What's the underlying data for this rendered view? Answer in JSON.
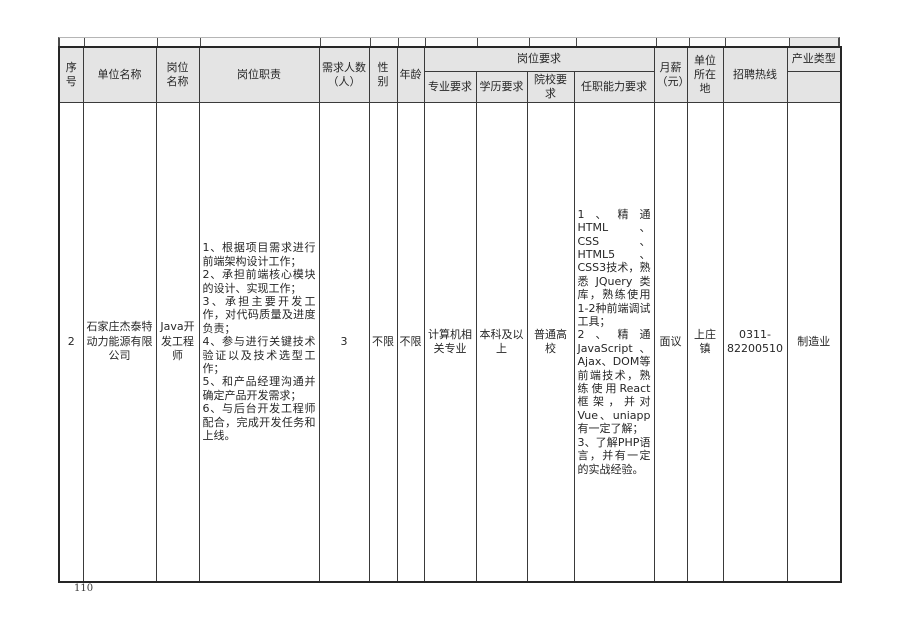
{
  "colors": {
    "header_bg": "#e4e4e4",
    "border": "#3a3a3a",
    "page_bg": "#ffffff"
  },
  "page_number": "110",
  "table": {
    "headers": {
      "serial": "序号",
      "company": "单位名称",
      "position": "岗位\n名称",
      "duties": "岗位职责",
      "headcount": "需求人数\n（人）",
      "gender": "性\n别",
      "age": "年龄",
      "requirements_group": "岗位要求",
      "major": "专业要求",
      "education": "学历要求",
      "school": "院校要求",
      "ability": "任职能力要求",
      "salary": "月薪\n（元）",
      "location": "单位\n所在地",
      "hotline": "招聘热线",
      "industry": "产业类型"
    },
    "rows": [
      {
        "serial": "2",
        "company": "石家庄杰泰特动力能源有限公司",
        "position": "Java开发工程师",
        "duties": "1、根据项目需求进行前端架构设计工作；\n2、承担前端核心模块的设计、实现工作；\n3、承担主要开发工作，对代码质量及进度负责；\n4、参与进行关键技术验证以及技术选型工作；\n5、和产品经理沟通并确定产品开发需求；\n6、与后台开发工程师配合，完成开发任务和上线。",
        "headcount": "3",
        "gender": "不限",
        "age": "不限",
        "major": "计算机相关专业",
        "education": "本科及以上",
        "school": "普通高校",
        "ability": "1、精通HTML、CSS、HTML5、CSS3技术，熟悉JQuery类库，熟练使用1-2种前端调试工具；\n2、精通JavaScript、Ajax、DOM等前端技术，熟练使用React框架，并对Vue、uniapp有一定了解；\n3、了解PHP语言，并有一定的实战经验。",
        "salary": "面议",
        "location": "上庄镇",
        "hotline": "0311-\n82200510",
        "industry": "制造业"
      }
    ]
  }
}
